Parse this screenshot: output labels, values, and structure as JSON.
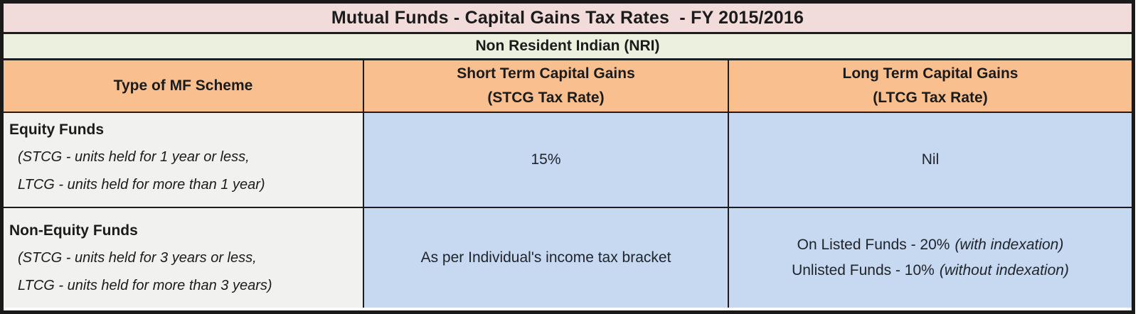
{
  "title": "Mutual Funds - Capital Gains Tax Rates  - FY 2015/2016",
  "subtitle": "Non Resident Indian (NRI)",
  "columns": {
    "scheme": "Type of MF Scheme",
    "stcg_line1": "Short Term Capital Gains",
    "stcg_line2": "(STCG Tax Rate)",
    "ltcg_line1": "Long Term Capital Gains",
    "ltcg_line2": "(LTCG Tax Rate)"
  },
  "rows": [
    {
      "scheme_name": "Equity Funds",
      "scheme_note1": "(STCG - units held for 1 year or less,",
      "scheme_note2": "LTCG - units held for more than 1 year)",
      "stcg": "15%",
      "ltcg": "Nil"
    },
    {
      "scheme_name": "Non-Equity Funds",
      "scheme_note1": "(STCG - units held for 3 years or less,",
      "scheme_note2": "LTCG - units held for more than 3 years)",
      "stcg": "As per Individual's income tax bracket",
      "ltcg_listed": "On Listed Funds - 20%",
      "ltcg_listed_note": "(with indexation)",
      "ltcg_unlisted": "Unlisted Funds - 10%",
      "ltcg_unlisted_note": "(without indexation)"
    }
  ],
  "colors": {
    "title_bg": "#f2dcdb",
    "subtitle_bg": "#ebf1de",
    "header_bg": "#fabf8f",
    "scheme_col_bg": "#f1f1ef",
    "value_col_bg": "#c6d9f0",
    "border": "#1a1a1a",
    "text": "#1b1b1b"
  },
  "chart_data": {
    "type": "table",
    "title": "Mutual Funds - Capital Gains Tax Rates  - FY 2015/2016",
    "subtitle": "Non Resident Indian (NRI)",
    "columns": [
      "Type of MF Scheme",
      "Short Term Capital Gains (STCG Tax Rate)",
      "Long Term Capital Gains (LTCG Tax Rate)"
    ],
    "rows": [
      [
        "Equity Funds (STCG - units held for 1 year or less, LTCG - units held for more than 1 year)",
        "15%",
        "Nil"
      ],
      [
        "Non-Equity Funds (STCG - units held for 3 years or less, LTCG - units held for more than 3 years)",
        "As per Individual's income tax bracket",
        "On Listed Funds - 20% (with indexation) Unlisted Funds - 10% (without indexation)"
      ]
    ]
  }
}
